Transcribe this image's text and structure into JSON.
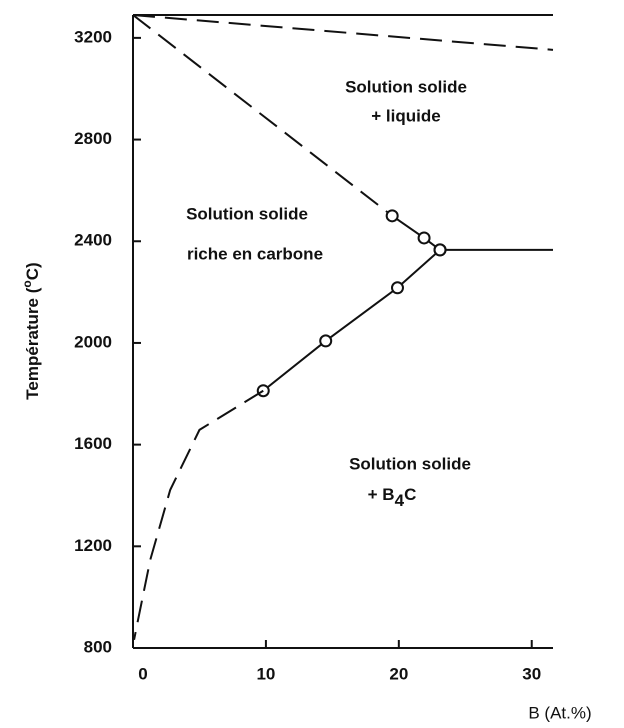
{
  "chart_data": {
    "type": "line",
    "x_label": "B (At.%)",
    "y_label": {
      "text": "Température (",
      "sup": "o",
      "tail": "C)"
    },
    "xlim": [
      0,
      31.6
    ],
    "ylim": [
      800,
      3290
    ],
    "xticks": [
      0,
      10,
      20,
      30
    ],
    "yticks": [
      800,
      1200,
      1600,
      2000,
      2400,
      2800,
      3200
    ],
    "color": "#111111",
    "series": [
      {
        "x": [
          0,
          31.6
        ],
        "values": [
          3290,
          3153
        ],
        "style": "dashed",
        "markers": false
      },
      {
        "x": [
          0,
          19.5
        ],
        "values": [
          3290,
          2500
        ],
        "style": "dashed",
        "markers": false
      },
      {
        "x": [
          19.5,
          21.9,
          23.1
        ],
        "values": [
          2500,
          2413,
          2366
        ],
        "style": "solid",
        "markers": true
      },
      {
        "x": [
          23.1,
          31.6
        ],
        "values": [
          2366,
          2366
        ],
        "style": "solid",
        "markers": false
      },
      {
        "x": [
          23.1,
          19.9,
          14.5,
          9.8
        ],
        "values": [
          2366,
          2217,
          2008,
          1812
        ],
        "style": "solid",
        "markers": true
      },
      {
        "x": [
          9.8,
          5.0,
          2.8,
          1.3,
          0.38,
          0.08
        ],
        "values": [
          1812,
          1658,
          1422,
          1147,
          911,
          832
        ],
        "style": "dashed",
        "markers": false
      }
    ],
    "annotations": [
      {
        "text": "Solution solide"
      },
      {
        "text": "+ liquide"
      },
      {
        "text": "Solution solide"
      },
      {
        "text": "riche en carbone"
      },
      {
        "text": "Solution solide"
      },
      {
        "text": "+ B",
        "sub": "4",
        "tail": "C"
      }
    ]
  }
}
